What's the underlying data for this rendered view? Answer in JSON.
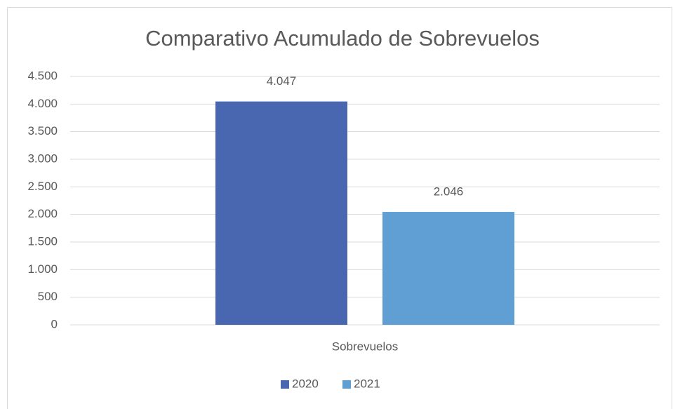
{
  "chart_data": {
    "type": "bar",
    "title": "Comparativo Acumulado de Sobrevuelos",
    "categories": [
      "Sobrevuelos"
    ],
    "series": [
      {
        "name": "2020",
        "color": "#4967b0",
        "values": [
          4047
        ],
        "value_labels": [
          "4.047"
        ]
      },
      {
        "name": "2021",
        "color": "#5f9fd4",
        "values": [
          2046
        ],
        "value_labels": [
          "2.046"
        ]
      }
    ],
    "ylim": [
      0,
      4500
    ],
    "yticks": [
      0,
      500,
      {
        "value": 1000,
        "label": "1.000"
      },
      {
        "value": 1500,
        "label": "1.500"
      },
      {
        "value": 2000,
        "label": "2.000"
      },
      {
        "value": 2500,
        "label": "2.500"
      },
      {
        "value": 3000,
        "label": "3.000"
      },
      {
        "value": 3500,
        "label": "3.500"
      },
      {
        "value": 4000,
        "label": "4.000"
      },
      {
        "value": 4500,
        "label": "4.500"
      }
    ],
    "grid": true,
    "legend": "bottom"
  }
}
